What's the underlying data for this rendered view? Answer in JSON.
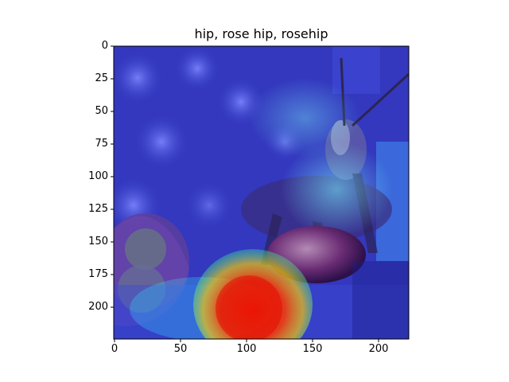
{
  "figure": {
    "title": "hip, rose hip, rosehip"
  },
  "image": {
    "subject": "grasshopper-on-rose-hip-with-heatmap-overlay"
  },
  "axes": {
    "x_ticks": [
      {
        "value": 0,
        "label": "0"
      },
      {
        "value": 50,
        "label": "50"
      },
      {
        "value": 100,
        "label": "100"
      },
      {
        "value": 150,
        "label": "150"
      },
      {
        "value": 200,
        "label": "200"
      }
    ],
    "y_ticks": [
      {
        "value": 0,
        "label": "0"
      },
      {
        "value": 25,
        "label": "25"
      },
      {
        "value": 50,
        "label": "50"
      },
      {
        "value": 75,
        "label": "75"
      },
      {
        "value": 100,
        "label": "100"
      },
      {
        "value": 125,
        "label": "125"
      },
      {
        "value": 150,
        "label": "150"
      },
      {
        "value": 175,
        "label": "175"
      },
      {
        "value": 200,
        "label": "200"
      }
    ],
    "x_range": [
      0,
      224
    ],
    "y_range": [
      0,
      224
    ]
  }
}
